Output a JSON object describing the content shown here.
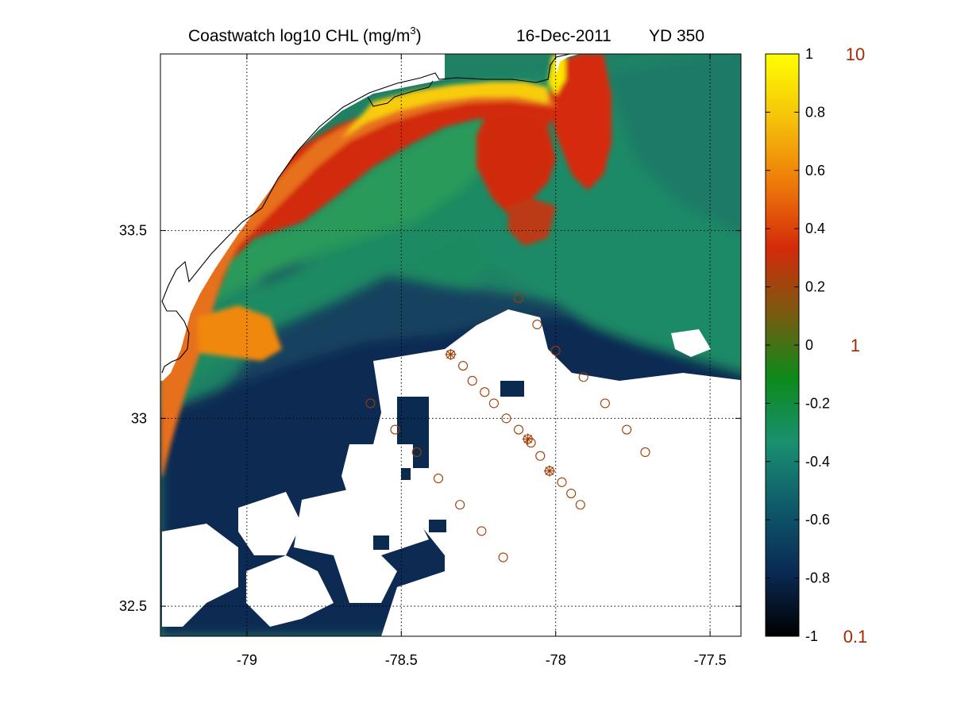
{
  "title": {
    "prefix": "Coastwatch  log10  CHL (mg/m",
    "superscript": "3",
    "suffix": ")",
    "date": "16-Dec-2011",
    "yearday": "YD 350"
  },
  "map": {
    "lon_ticks": [
      "-79",
      "-78.5",
      "-78",
      "-77.5"
    ],
    "lat_ticks": [
      "33.5",
      "33",
      "32.5"
    ],
    "lon_range": [
      -79.28,
      -77.4
    ],
    "lat_range": [
      32.42,
      33.97
    ],
    "grid": "dotted",
    "land_color": "#ffffff",
    "coastline_color": "#000000",
    "cloud_mask_color": "#ffffff"
  },
  "colorbar": {
    "ticks": [
      "1",
      "0.8",
      "0.6",
      "0.4",
      "0.2",
      "0",
      "-0.2",
      "-0.4",
      "-0.6",
      "-0.8",
      "-1"
    ],
    "right_labels": [
      "10",
      "1",
      "0.1"
    ],
    "right_label_color": "#a52a00",
    "range": [
      -1,
      1
    ],
    "colors": [
      "#000000",
      "#0a2a55",
      "#0e5a6a",
      "#1a9070",
      "#0c8a1a",
      "#7a5a10",
      "#d42a0a",
      "#ee7a0a",
      "#f5c20a",
      "#ffff00"
    ]
  },
  "stations": {
    "color": "#a03c00",
    "marker": "open-circle",
    "points": [
      {
        "lon": -78.12,
        "lat": 33.32,
        "star": false
      },
      {
        "lon": -78.06,
        "lat": 33.25,
        "star": false
      },
      {
        "lon": -78.0,
        "lat": 33.18,
        "star": false
      },
      {
        "lon": -78.34,
        "lat": 33.17,
        "star": true
      },
      {
        "lon": -78.3,
        "lat": 33.14,
        "star": false
      },
      {
        "lon": -78.27,
        "lat": 33.1,
        "star": false
      },
      {
        "lon": -78.23,
        "lat": 33.07,
        "star": false
      },
      {
        "lon": -78.2,
        "lat": 33.04,
        "star": false
      },
      {
        "lon": -78.16,
        "lat": 33.0,
        "star": false
      },
      {
        "lon": -78.12,
        "lat": 32.97,
        "star": false
      },
      {
        "lon": -78.09,
        "lat": 32.945,
        "star": true
      },
      {
        "lon": -78.08,
        "lat": 32.935,
        "star": false
      },
      {
        "lon": -78.05,
        "lat": 32.9,
        "star": false
      },
      {
        "lon": -78.02,
        "lat": 32.86,
        "star": true
      },
      {
        "lon": -77.98,
        "lat": 32.83,
        "star": false
      },
      {
        "lon": -77.95,
        "lat": 32.8,
        "star": false
      },
      {
        "lon": -77.92,
        "lat": 32.77,
        "star": false
      },
      {
        "lon": -77.91,
        "lat": 33.11,
        "star": false
      },
      {
        "lon": -77.84,
        "lat": 33.04,
        "star": false
      },
      {
        "lon": -77.77,
        "lat": 32.97,
        "star": false
      },
      {
        "lon": -77.71,
        "lat": 32.91,
        "star": false
      },
      {
        "lon": -78.6,
        "lat": 33.04,
        "star": false
      },
      {
        "lon": -78.52,
        "lat": 32.97,
        "star": false
      },
      {
        "lon": -78.45,
        "lat": 32.91,
        "star": false
      },
      {
        "lon": -78.38,
        "lat": 32.84,
        "star": false
      },
      {
        "lon": -78.31,
        "lat": 32.77,
        "star": false
      },
      {
        "lon": -78.24,
        "lat": 32.7,
        "star": false
      },
      {
        "lon": -78.17,
        "lat": 32.63,
        "star": false
      }
    ]
  }
}
